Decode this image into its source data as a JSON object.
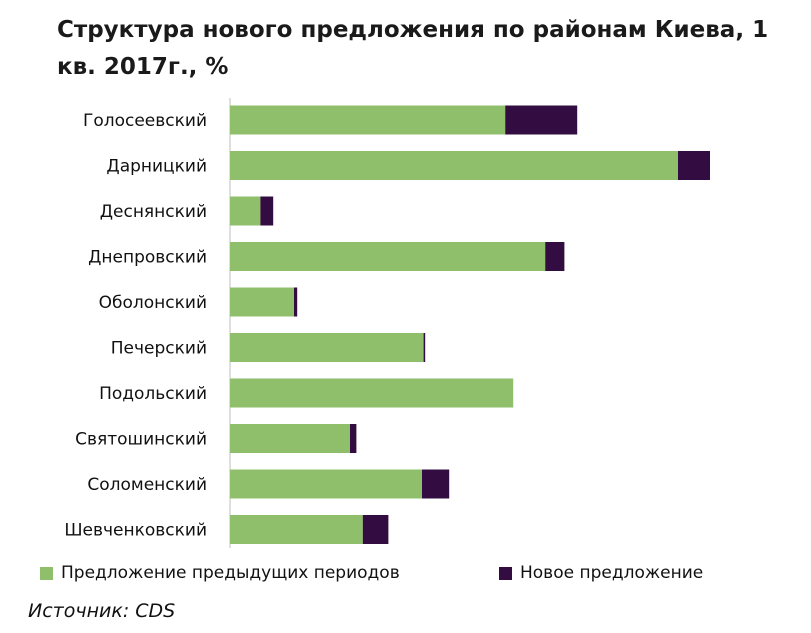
{
  "chart_data": {
    "type": "bar",
    "orientation": "horizontal",
    "stacked": true,
    "title": "Структура нового предложения по районам Киева, 1 кв. 2017г., %",
    "categories": [
      "Голосеевский",
      "Дарницкий",
      "Деснянский",
      "Днепровский",
      "Оболонский",
      "Печерский",
      "Подольский",
      "Святошинский",
      "Соломенский",
      "Шевченковский"
    ],
    "series": [
      {
        "name": "Предложение предыдущих периодов",
        "color": "#8fbf6b",
        "values": [
          17.2,
          28.0,
          1.9,
          19.7,
          4.0,
          12.1,
          17.7,
          7.5,
          12.0,
          8.3
        ]
      },
      {
        "name": "Новое предложение",
        "color": "#330d41",
        "values": [
          4.5,
          2.0,
          0.8,
          1.2,
          0.2,
          0.1,
          0.0,
          0.4,
          1.7,
          1.6
        ]
      }
    ],
    "xlim": [
      0,
      35
    ],
    "grid": false,
    "legend_position": "bottom"
  },
  "source": "Источник: CDS"
}
